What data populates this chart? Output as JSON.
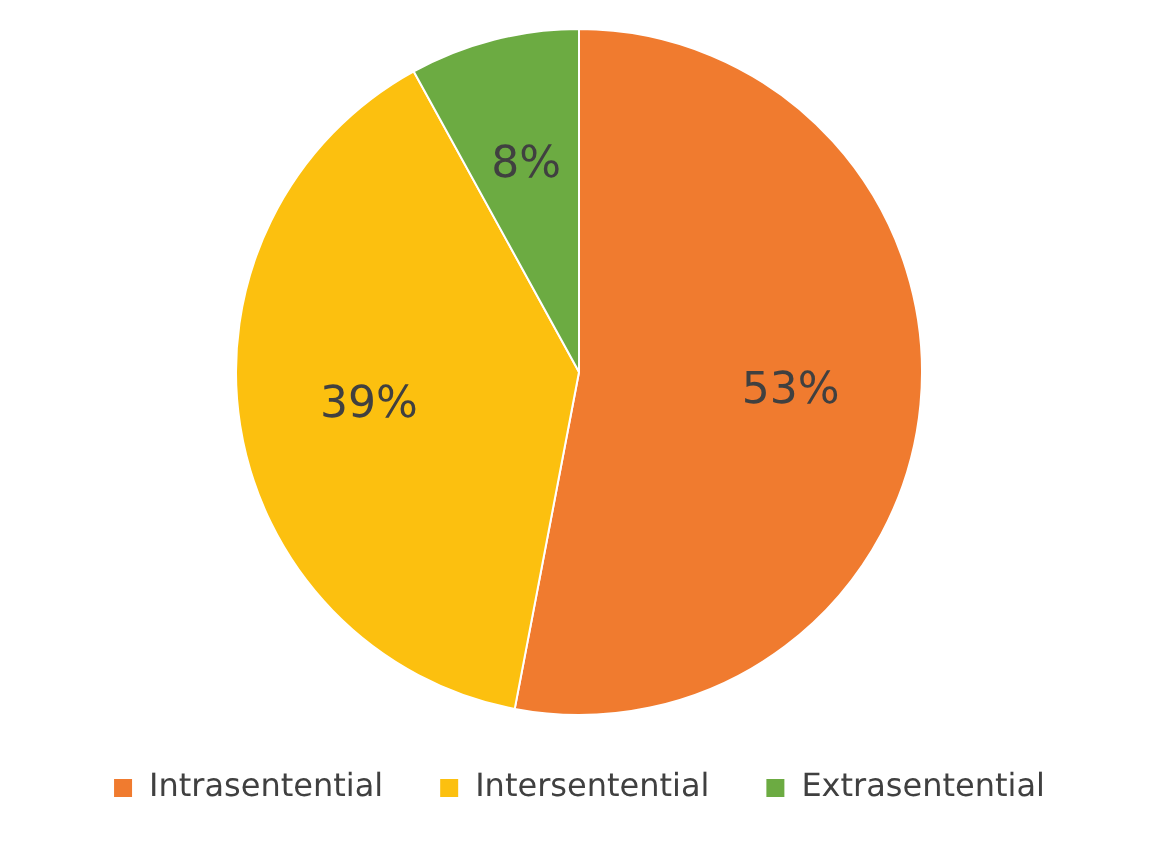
{
  "chart_data": {
    "type": "pie",
    "categories": [
      "Intrasentential",
      "Intersentential",
      "Extrasentential"
    ],
    "values": [
      53,
      39,
      8
    ],
    "value_labels": [
      "53%",
      "39%",
      "8%"
    ],
    "colors": [
      "#f07b2f",
      "#fcc00f",
      "#6cab42"
    ],
    "legend": "bottom"
  }
}
